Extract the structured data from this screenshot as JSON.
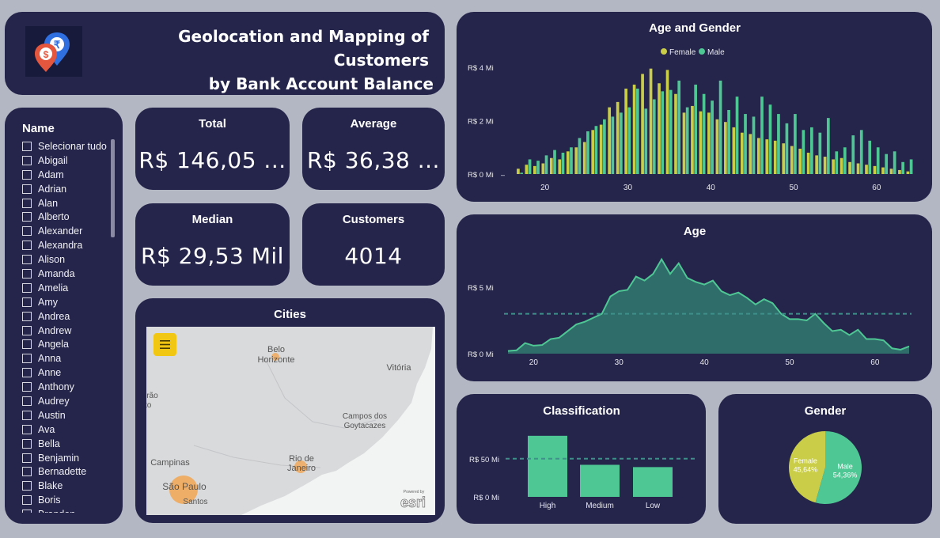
{
  "header": {
    "title_line1": "Geolocation and Mapping of Customers",
    "title_line2": "by Bank Account Balance",
    "logo_icon": "location-pins-currency-icon"
  },
  "slicer": {
    "title": "Name",
    "items": [
      "Selecionar tudo",
      "Abigail",
      "Adam",
      "Adrian",
      "Alan",
      "Alberto",
      "Alexander",
      "Alexandra",
      "Alison",
      "Amanda",
      "Amelia",
      "Amy",
      "Andrea",
      "Andrew",
      "Angela",
      "Anna",
      "Anne",
      "Anthony",
      "Audrey",
      "Austin",
      "Ava",
      "Bella",
      "Benjamin",
      "Bernadette",
      "Blake",
      "Boris",
      "Brandon"
    ]
  },
  "kpis": {
    "total": {
      "label": "Total",
      "value": "R$ 146,05 ..."
    },
    "average": {
      "label": "Average",
      "value": "R$ 36,38 ..."
    },
    "median": {
      "label": "Median",
      "value": "R$ 29,53 Mil"
    },
    "customers": {
      "label": "Customers",
      "value": "4014"
    }
  },
  "map": {
    "title": "Cities",
    "menu_icon": "hamburger-menu-icon",
    "labels": {
      "belo_horizonte": [
        "Belo",
        "Horizonte"
      ],
      "vitoria": "Vitória",
      "campos": [
        "Campos dos",
        "Goytacazes"
      ],
      "rio": [
        "Rio de",
        "Janeiro"
      ],
      "campinas": "Campinas",
      "sao_paulo": "São Paulo",
      "santos": "Santos",
      "ribeirao": [
        "irão",
        "to"
      ]
    },
    "watermark": "esri",
    "watermark_small": "Powered by"
  },
  "colors": {
    "card": "#25254b",
    "female": "#c9cd47",
    "male": "#4fc794",
    "area": "#2f6d6a",
    "line": "#4fc794",
    "background": "#b3b7c3"
  },
  "chart_data": [
    {
      "id": "age_gender",
      "type": "bar",
      "title": "Age and Gender",
      "legend": [
        "Female",
        "Male"
      ],
      "legend_position": "top-center",
      "yticks": [
        "R$ 0 Mi",
        "R$ 2 Mi",
        "R$ 4 Mi"
      ],
      "ylim": [
        0,
        4
      ],
      "xticks": [
        20,
        30,
        40,
        50,
        60
      ],
      "x": [
        17,
        18,
        19,
        20,
        21,
        22,
        23,
        24,
        25,
        26,
        27,
        28,
        29,
        30,
        31,
        32,
        33,
        34,
        35,
        36,
        37,
        38,
        39,
        40,
        41,
        42,
        43,
        44,
        45,
        46,
        47,
        48,
        49,
        50,
        51,
        52,
        53,
        54,
        55,
        56,
        57,
        58,
        59,
        60,
        61,
        62,
        63,
        64
      ],
      "series": [
        {
          "name": "Female",
          "values": [
            0.2,
            0.35,
            0.3,
            0.4,
            0.6,
            0.55,
            0.85,
            1.0,
            1.2,
            1.65,
            1.85,
            2.5,
            2.7,
            3.2,
            3.35,
            3.75,
            3.95,
            3.4,
            3.9,
            3.0,
            2.3,
            2.55,
            2.35,
            2.3,
            2.05,
            1.95,
            1.75,
            1.55,
            1.5,
            1.35,
            1.3,
            1.25,
            1.15,
            1.05,
            0.95,
            0.8,
            0.7,
            0.65,
            0.55,
            0.6,
            0.45,
            0.4,
            0.35,
            0.3,
            0.25,
            0.2,
            0.15,
            0.1
          ]
        },
        {
          "name": "Male",
          "values": [
            0.05,
            0.55,
            0.5,
            0.7,
            0.9,
            0.8,
            1.0,
            1.35,
            1.6,
            1.8,
            2.05,
            2.15,
            2.3,
            2.5,
            3.2,
            2.45,
            2.8,
            3.1,
            3.15,
            3.5,
            2.5,
            3.35,
            3.0,
            2.75,
            3.5,
            2.4,
            2.9,
            2.25,
            2.15,
            2.9,
            2.6,
            2.25,
            1.9,
            2.25,
            1.65,
            1.75,
            1.55,
            2.1,
            0.85,
            1.0,
            1.45,
            1.65,
            1.25,
            1.0,
            0.75,
            0.85,
            0.45,
            0.55
          ]
        }
      ]
    },
    {
      "id": "age",
      "type": "area",
      "title": "Age",
      "yticks": [
        "R$ 0 Mi",
        "R$ 5 Mi"
      ],
      "ylim": [
        0,
        7.5
      ],
      "xticks": [
        20,
        30,
        40,
        50,
        60
      ],
      "reference_line": 3.0,
      "x": [
        17,
        18,
        19,
        20,
        21,
        22,
        23,
        24,
        25,
        26,
        27,
        28,
        29,
        30,
        31,
        32,
        33,
        34,
        35,
        36,
        37,
        38,
        39,
        40,
        41,
        42,
        43,
        44,
        45,
        46,
        47,
        48,
        49,
        50,
        51,
        52,
        53,
        54,
        55,
        56,
        57,
        58,
        59,
        60,
        61,
        62,
        63,
        64
      ],
      "values": [
        0.2,
        0.25,
        0.8,
        0.6,
        0.65,
        1.1,
        1.2,
        1.7,
        2.2,
        2.4,
        2.7,
        3.0,
        4.3,
        4.7,
        4.8,
        5.8,
        5.5,
        6.0,
        7.1,
        6.0,
        6.8,
        5.7,
        5.4,
        5.2,
        5.5,
        4.7,
        4.4,
        4.6,
        4.2,
        3.7,
        4.1,
        3.8,
        3.0,
        2.6,
        2.6,
        2.5,
        3.0,
        2.3,
        1.7,
        1.8,
        1.4,
        1.8,
        1.1,
        1.1,
        1.0,
        0.4,
        0.3,
        0.55
      ]
    },
    {
      "id": "classification",
      "type": "bar",
      "title": "Classification",
      "categories": [
        "High",
        "Medium",
        "Low"
      ],
      "values": [
        80,
        42,
        39
      ],
      "yticks": [
        "R$ 0 Mi",
        "R$ 50 Mi"
      ],
      "ylim": [
        0,
        85
      ],
      "reference_line": 50
    },
    {
      "id": "gender",
      "type": "pie",
      "title": "Gender",
      "slices": [
        {
          "name": "Female",
          "label": "45,64%",
          "value": 45.64
        },
        {
          "name": "Male",
          "label": "54,36%",
          "value": 54.36
        }
      ]
    }
  ]
}
